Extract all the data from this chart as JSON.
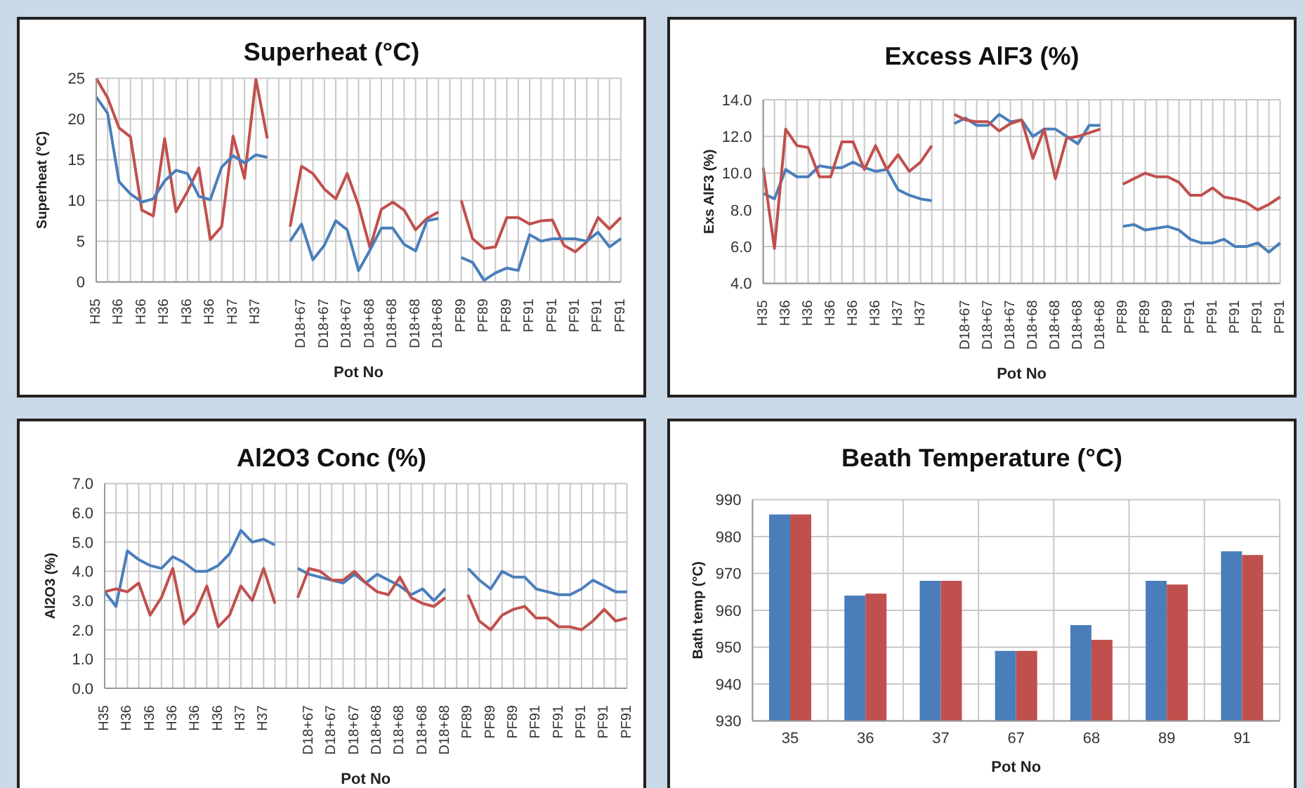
{
  "chart_data": [
    {
      "type": "line",
      "title": "Superheat (°C)",
      "xlabel": "Pot No",
      "ylabel": "Superheat (°C)",
      "categories": [
        "H35",
        null,
        "H36",
        null,
        "H36",
        null,
        "H36",
        null,
        "H36",
        null,
        "H36",
        null,
        "H37",
        null,
        "H37",
        null,
        null,
        null,
        "D18+67",
        null,
        "D18+67",
        null,
        "D18+67",
        null,
        "D18+68",
        null,
        "D18+68",
        null,
        "D18+68",
        null,
        "D18+68",
        null,
        "PF89",
        null,
        "PF89",
        null,
        "PF89",
        null,
        "PF91",
        null,
        "PF91",
        null,
        "PF91",
        null,
        "PF91",
        null,
        "PF91"
      ],
      "series": [
        {
          "color": "#c0504d",
          "values": [
            25,
            22.6,
            18.9,
            17.8,
            8.8,
            8.1,
            17.6,
            8.6,
            11.1,
            14.0,
            5.2,
            6.8,
            17.9,
            12.7,
            24.9,
            17.6,
            null,
            6.8,
            14.2,
            13.3,
            11.4,
            10.2,
            13.3,
            9.4,
            4.2,
            8.9,
            9.8,
            8.8,
            6.4,
            7.8,
            8.6,
            null,
            10.0,
            5.3,
            4.1,
            4.3,
            7.9,
            7.9,
            7.1,
            7.5,
            7.6,
            4.5,
            3.7,
            4.9,
            7.9,
            6.5,
            7.9
          ]
        },
        {
          "color": "#4a7ebb",
          "values": [
            22.7,
            20.7,
            12.3,
            10.8,
            9.8,
            10.2,
            12.4,
            13.7,
            13.3,
            10.5,
            10.1,
            14.1,
            15.5,
            14.6,
            15.6,
            15.3,
            null,
            5.0,
            7.1,
            2.7,
            4.5,
            7.5,
            6.4,
            1.4,
            3.9,
            6.6,
            6.6,
            4.6,
            3.8,
            7.5,
            7.8,
            null,
            3.0,
            2.4,
            0.2,
            1.1,
            1.7,
            1.4,
            5.8,
            5.0,
            5.3,
            5.3,
            5.3,
            5.0,
            6.1,
            4.3,
            5.3
          ]
        }
      ],
      "ylim": [
        0,
        25
      ],
      "yticks": [
        0,
        5,
        10,
        15,
        20,
        25
      ],
      "grid": true
    },
    {
      "type": "line",
      "title": "Excess AlF3 (%)",
      "xlabel": "Pot No",
      "ylabel": "Exs AlF3 (%)",
      "categories": [
        "H35",
        null,
        "H36",
        null,
        "H36",
        null,
        "H36",
        null,
        "H36",
        null,
        "H36",
        null,
        "H37",
        null,
        "H37",
        null,
        null,
        null,
        "D18+67",
        null,
        "D18+67",
        null,
        "D18+67",
        null,
        "D18+68",
        null,
        "D18+68",
        null,
        "D18+68",
        null,
        "D18+68",
        null,
        "PF89",
        null,
        "PF89",
        null,
        "PF89",
        null,
        "PF91",
        null,
        "PF91",
        null,
        "PF91",
        null,
        "PF91",
        null,
        "PF91"
      ],
      "series": [
        {
          "color": "#4a7ebb",
          "values": [
            8.9,
            8.6,
            10.2,
            9.8,
            9.8,
            10.4,
            10.3,
            10.3,
            10.6,
            10.3,
            10.1,
            10.2,
            9.1,
            8.8,
            8.6,
            8.5,
            null,
            12.7,
            13.0,
            12.6,
            12.6,
            13.2,
            12.8,
            12.9,
            12.0,
            12.4,
            12.4,
            12.0,
            11.6,
            12.6,
            12.6,
            null,
            7.1,
            7.2,
            6.9,
            7.0,
            7.1,
            6.9,
            6.4,
            6.2,
            6.2,
            6.4,
            6.0,
            6.0,
            6.2,
            5.7,
            6.2
          ]
        },
        {
          "color": "#c0504d",
          "values": [
            10.3,
            5.9,
            12.4,
            11.5,
            11.4,
            9.8,
            9.8,
            11.7,
            11.7,
            10.2,
            11.5,
            10.2,
            11.0,
            10.1,
            10.6,
            11.5,
            null,
            13.2,
            12.9,
            12.8,
            12.8,
            12.3,
            12.7,
            12.9,
            10.8,
            12.4,
            9.7,
            11.9,
            12.0,
            12.2,
            12.4,
            null,
            9.4,
            9.7,
            10.0,
            9.8,
            9.8,
            9.5,
            8.8,
            8.8,
            9.2,
            8.7,
            8.6,
            8.4,
            8.0,
            8.3,
            8.7
          ]
        }
      ],
      "ylim": [
        4,
        14
      ],
      "yticks": [
        {
          "value": 4,
          "label": "4.0"
        },
        {
          "value": 6,
          "label": "6.0"
        },
        {
          "value": 8,
          "label": "8.0"
        },
        {
          "value": 10,
          "label": "10.0"
        },
        {
          "value": 12,
          "label": "12.0"
        },
        {
          "value": 14,
          "label": "14.0"
        }
      ],
      "grid": true
    },
    {
      "type": "line",
      "title": "Al2O3 Conc (%)",
      "xlabel": "Pot No",
      "ylabel": "Al2O3 (%)",
      "categories": [
        "H35",
        null,
        "H36",
        null,
        "H36",
        null,
        "H36",
        null,
        "H36",
        null,
        "H36",
        null,
        "H37",
        null,
        "H37",
        null,
        null,
        null,
        "D18+67",
        null,
        "D18+67",
        null,
        "D18+67",
        null,
        "D18+68",
        null,
        "D18+68",
        null,
        "D18+68",
        null,
        "D18+68",
        null,
        "PF89",
        null,
        "PF89",
        null,
        "PF89",
        null,
        "PF91",
        null,
        "PF91",
        null,
        "PF91",
        null,
        "PF91",
        null,
        "PF91"
      ],
      "series": [
        {
          "color": "#4a7ebb",
          "values": [
            3.3,
            2.8,
            4.7,
            4.4,
            4.2,
            4.1,
            4.5,
            4.3,
            4.0,
            4.0,
            4.2,
            4.6,
            5.4,
            5.0,
            5.1,
            4.9,
            null,
            4.1,
            3.9,
            3.8,
            3.7,
            3.6,
            3.9,
            3.6,
            3.9,
            3.7,
            3.5,
            3.2,
            3.4,
            3.0,
            3.4,
            null,
            4.1,
            3.7,
            3.4,
            4.0,
            3.8,
            3.8,
            3.4,
            3.3,
            3.2,
            3.2,
            3.4,
            3.7,
            3.5,
            3.3,
            3.3
          ]
        },
        {
          "color": "#c0504d",
          "values": [
            3.3,
            3.4,
            3.3,
            3.6,
            2.5,
            3.1,
            4.1,
            2.2,
            2.6,
            3.5,
            2.1,
            2.5,
            3.5,
            3.0,
            4.1,
            2.9,
            null,
            3.1,
            4.1,
            4.0,
            3.7,
            3.7,
            4.0,
            3.6,
            3.3,
            3.2,
            3.8,
            3.1,
            2.9,
            2.8,
            3.1,
            null,
            3.2,
            2.3,
            2.0,
            2.5,
            2.7,
            2.8,
            2.4,
            2.4,
            2.1,
            2.1,
            2.0,
            2.3,
            2.7,
            2.3,
            2.4
          ]
        }
      ],
      "ylim": [
        0,
        7
      ],
      "yticks": [
        {
          "value": 0,
          "label": "0.0"
        },
        {
          "value": 1,
          "label": "1.0"
        },
        {
          "value": 2,
          "label": "2.0"
        },
        {
          "value": 3,
          "label": "3.0"
        },
        {
          "value": 4,
          "label": "4.0"
        },
        {
          "value": 5,
          "label": "5.0"
        },
        {
          "value": 6,
          "label": "6.0"
        },
        {
          "value": 7,
          "label": "7.0"
        }
      ],
      "grid": true
    },
    {
      "type": "bar",
      "title": "Beath Temperature (°C)",
      "xlabel": "Pot No",
      "ylabel": "Bath temp (°C)",
      "categories": [
        "35",
        "36",
        "37",
        "67",
        "68",
        "89",
        "91"
      ],
      "series": [
        {
          "color": "#4a7ebb",
          "values": [
            986,
            964,
            968,
            949,
            956,
            968,
            976
          ]
        },
        {
          "color": "#c0504d",
          "values": [
            986,
            964.5,
            968,
            949,
            952,
            967,
            975
          ]
        }
      ],
      "ylim": [
        930,
        990
      ],
      "yticks": [
        930,
        940,
        950,
        960,
        970,
        980,
        990
      ],
      "grid": true
    }
  ]
}
